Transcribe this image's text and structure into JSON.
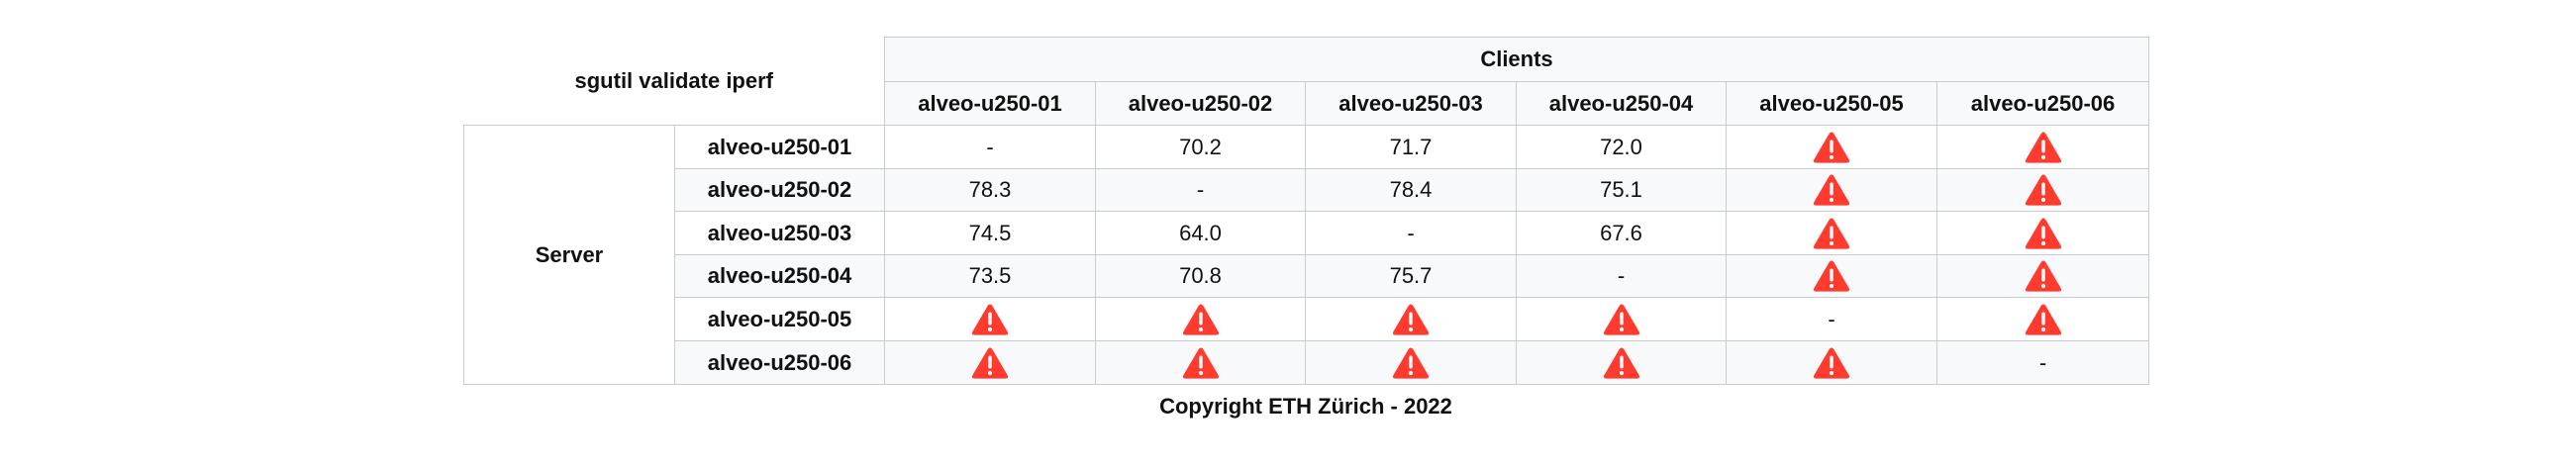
{
  "table": {
    "title": "sgutil validate iperf",
    "clients_label": "Clients",
    "server_label": "Server",
    "columns": [
      "alveo-u250-01",
      "alveo-u250-02",
      "alveo-u250-03",
      "alveo-u250-04",
      "alveo-u250-05",
      "alveo-u250-06"
    ],
    "rows": [
      {
        "server": "alveo-u250-01",
        "cells": [
          "-",
          "70.2",
          "71.7",
          "72.0",
          "warning",
          "warning"
        ]
      },
      {
        "server": "alveo-u250-02",
        "cells": [
          "78.3",
          "-",
          "78.4",
          "75.1",
          "warning",
          "warning"
        ]
      },
      {
        "server": "alveo-u250-03",
        "cells": [
          "74.5",
          "64.0",
          "-",
          "67.6",
          "warning",
          "warning"
        ]
      },
      {
        "server": "alveo-u250-04",
        "cells": [
          "73.5",
          "70.8",
          "75.7",
          "-",
          "warning",
          "warning"
        ]
      },
      {
        "server": "alveo-u250-05",
        "cells": [
          "warning",
          "warning",
          "warning",
          "warning",
          "-",
          "warning"
        ]
      },
      {
        "server": "alveo-u250-06",
        "cells": [
          "warning",
          "warning",
          "warning",
          "warning",
          "warning",
          "-"
        ]
      }
    ],
    "warning_icon": "warning-triangle-icon",
    "warning_color": "#ff3b30"
  },
  "footer": {
    "copyright": "Copyright ETH Zürich - 2022"
  }
}
